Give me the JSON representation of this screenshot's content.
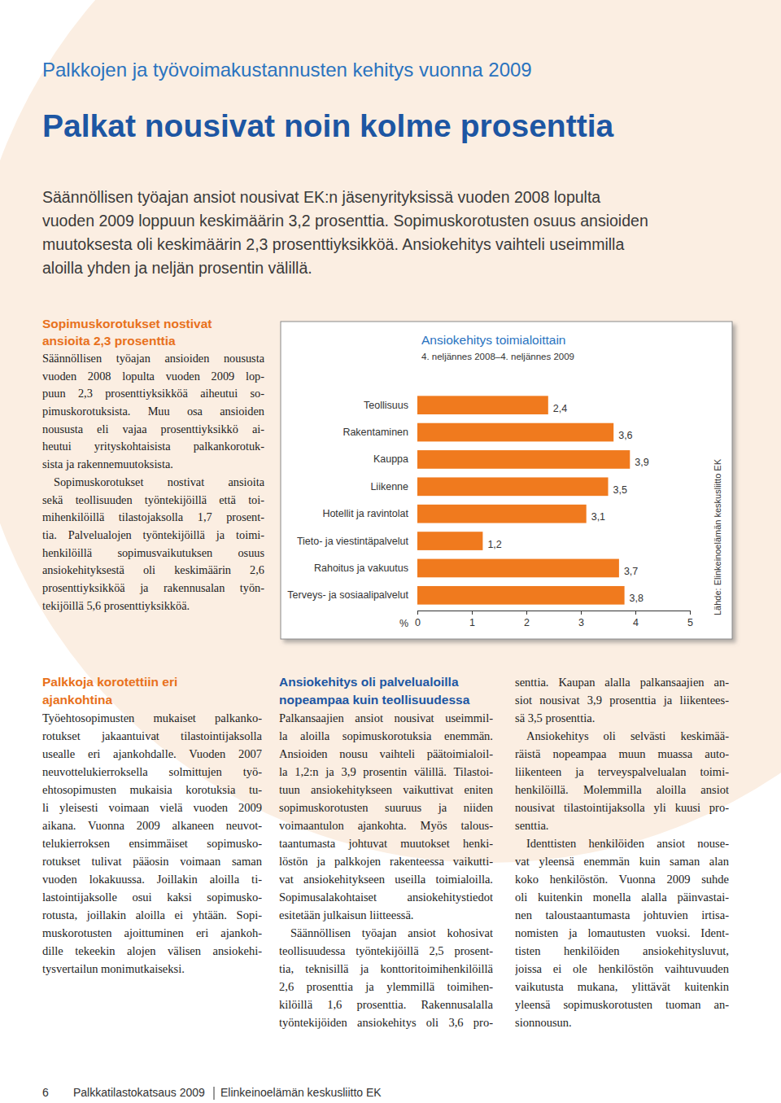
{
  "header": {
    "kicker": "Palkkojen ja työvoimakustannusten kehitys vuonna 2009",
    "title": "Palkat nousivat noin kolme prosenttia"
  },
  "intro": {
    "lines": [
      "Säännöllisen työajan ansiot nousivat EK:n jäsenyrityksissä vuoden 2008 lopulta",
      "vuoden 2009 loppuun keskimäärin 3,2 prosenttia. Sopimuskorotusten osuus ansioiden",
      "muutoksesta oli keskimäärin 2,3 prosenttiyksikköä. Ansiokehitys vaihteli useimmilla",
      "aloilla yhden ja neljän prosentin välillä."
    ]
  },
  "sidebar": {
    "heading": [
      "Sopimuskorotukset nostivat",
      "ansioita 2,3 prosenttia"
    ],
    "paragraphs": [
      [
        "Säännöllisen työajan ansioiden noususta",
        "vuoden 2008 lopulta vuoden 2009 lop-",
        "puun 2,3 prosenttiyksikköä aiheutui so-",
        "pimuskorotuksista. Muu osa ansioiden",
        "noususta eli vajaa prosenttiyksikkö ai-",
        "heutui yrityskohtaisista palkankorotuk-",
        "sista ja rakennemuutoksista."
      ],
      [
        "Sopimuskorotukset nostivat ansioita",
        "sekä teollisuuden työntekijöillä että toi-",
        "mihenkilöillä tilastojaksolla 1,7 prosent-",
        "tia. Palvelualojen työntekijöillä ja toimi-",
        "henkilöillä sopimusvaikutuksen osuus",
        "ansiokehityksestä oli keskimäärin 2,6",
        "prosenttiyksikköä ja rakennusalan työn-",
        "tekijöillä 5,6 prosenttiyksikköä."
      ]
    ]
  },
  "chart_data": {
    "type": "bar",
    "orientation": "horizontal",
    "title": "Ansiokehitys toimialoittain",
    "subtitle": "4. neljännes 2008–4. neljännes 2009",
    "categories": [
      "Teollisuus",
      "Rakentaminen",
      "Kauppa",
      "Liikenne",
      "Hotellit ja ravintolat",
      "Tieto- ja viestintäpalvelut",
      "Rahoitus ja vakuutus",
      "Terveys- ja sosiaalipalvelut"
    ],
    "values": [
      2.4,
      3.6,
      3.9,
      3.5,
      3.1,
      1.2,
      3.7,
      3.8
    ],
    "value_labels": [
      "2,4",
      "3,6",
      "3,9",
      "3,5",
      "3,1",
      "1,2",
      "3,7",
      "3,8"
    ],
    "data_labels": true,
    "color": "#f07a1e",
    "xlabel": "%",
    "xlim": [
      0,
      5
    ],
    "xticks": [
      0,
      1,
      2,
      3,
      4,
      5
    ],
    "grid": false,
    "source": "Lähde: Elinkeinoelämän keskusliitto EK"
  },
  "columns": [
    {
      "heading": [
        "Palkkoja korotettiin eri",
        "ajankohtina"
      ],
      "paragraphs": [
        [
          "Työehtosopimusten mukaiset palkanko-",
          "rotukset jakaantuivat tilastointijaksolla",
          "usealle eri ajankohdalle. Vuoden 2007",
          "neuvottelukierroksella solmittujen työ-",
          "ehtosopimusten mukaisia korotuksia tu-",
          "li yleisesti voimaan vielä vuoden 2009",
          "aikana. Vuonna 2009 alkaneen neuvot-",
          "telukierroksen ensimmäiset sopimusko-",
          "rotukset tulivat pääosin voimaan saman",
          "vuoden lokakuussa. Joillakin aloilla ti-",
          "lastointijaksolle osui kaksi sopimusko-",
          "rotusta, joillakin aloilla ei yhtään. Sopi-",
          "muskorotusten ajoittuminen eri ajankoh-",
          "dille tekeekin alojen välisen ansiokehi-",
          "tysvertailun monimutkaiseksi."
        ]
      ]
    },
    {
      "heading": [
        "Ansiokehitys oli palvelualoilla",
        "nopeampaa kuin teollisuudessa"
      ],
      "paragraphs": [
        [
          "Palkansaajien ansiot nousivat useimmil-",
          "la aloilla sopimuskorotuksia enemmän.",
          "Ansioiden nousu vaihteli päätoimialoil-",
          "la 1,2:n ja 3,9 prosentin välillä. Tilastoi-",
          "tuun ansiokehitykseen vaikuttivat eniten",
          "sopimuskorotusten suuruus ja niiden",
          "voimaantulon ajankohta. Myös talous-",
          "taantumasta johtuvat muutokset henki-",
          "löstön ja palkkojen rakenteessa vaikutti-",
          "vat ansiokehitykseen useilla toimialoilla.",
          "Sopimusalakohtaiset ansiokehitystiedot",
          "esitetään julkaisun liitteessä."
        ],
        [
          "Säännöllisen työajan ansiot kohosivat",
          "teollisuudessa työntekijöillä 2,5 prosent-",
          "tia, teknisillä ja konttoritoimihenkilöillä",
          "2,6 prosenttia ja ylemmillä toimihen-",
          "kilöillä 1,6 prosenttia. Rakennusalalla",
          "työntekijöiden ansiokehitys oli 3,6 pro-"
        ]
      ]
    },
    {
      "paragraphs": [
        [
          "senttia. Kaupan alalla palkansaajien an-",
          "siot nousivat 3,9 prosenttia ja liikentees-",
          "sä 3,5 prosenttia."
        ],
        [
          "Ansiokehitys oli selvästi keskimää-",
          "räistä nopeampaa muun muassa auto-",
          "liikenteen ja terveyspalvelualan toimi-",
          "henkilöillä. Molemmilla aloilla ansiot",
          "nousivat tilastointijaksolla yli kuusi pro-",
          "senttia."
        ],
        [
          "Identtisten henkilöiden ansiot nouse-",
          "vat yleensä enemmän kuin saman alan",
          "koko henkilöstön. Vuonna 2009 suhde",
          "oli kuitenkin monella alalla päinvastai-",
          "nen taloustaantumasta johtuvien irtisa-",
          "nomisten ja lomautusten vuoksi. Ident-",
          "tisten henkilöiden ansiokehitysluvut,",
          "joissa ei ole henkilöstön vaihtuvuuden",
          "vaikutusta mukana, ylittävät kuitenkin",
          "yleensä sopimuskorotusten tuoman an-",
          "sionnousun."
        ]
      ]
    }
  ],
  "footer": {
    "page": 6,
    "publication": "Palkkatilastokatsaus 2009",
    "publisher": "Elinkeinoelämän keskusliitto EK"
  }
}
